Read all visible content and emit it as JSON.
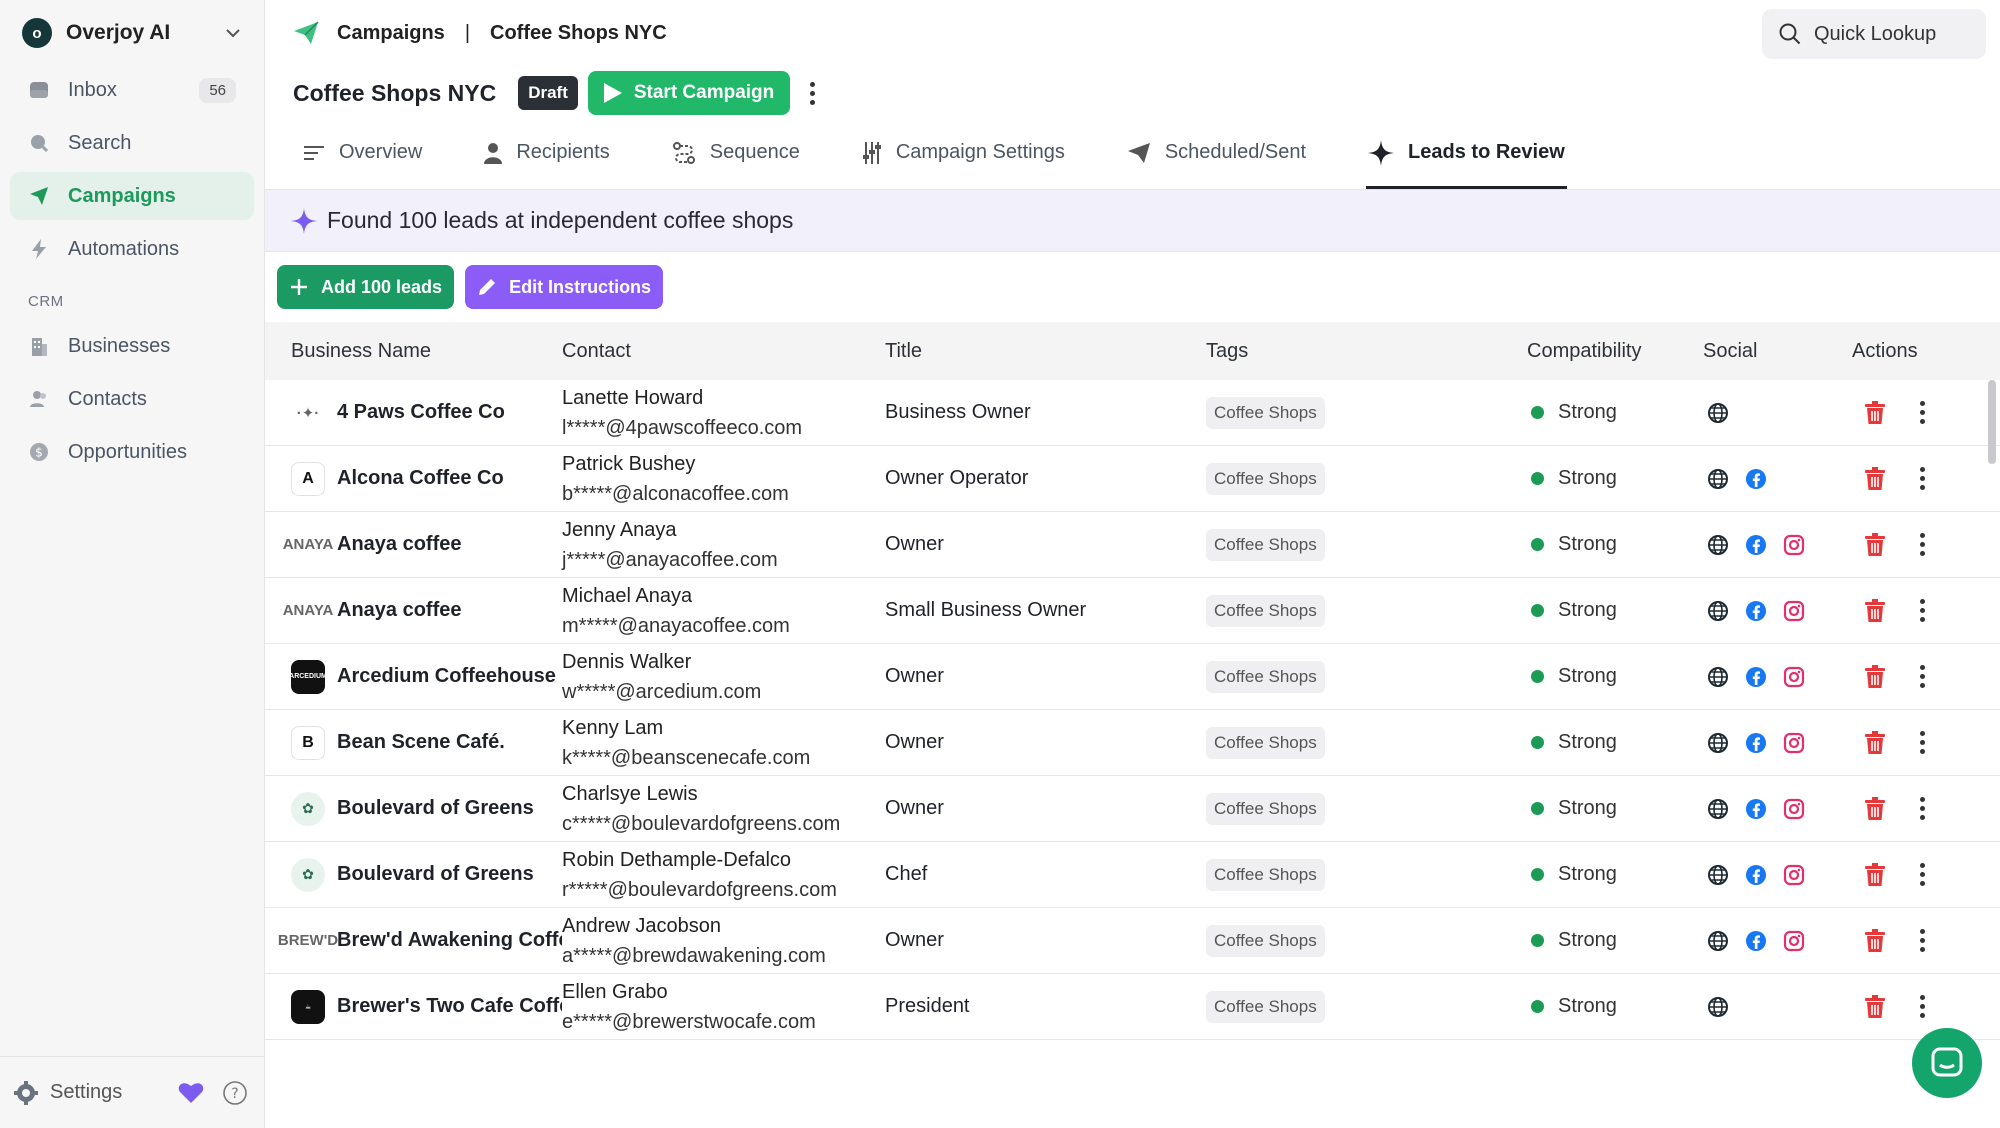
{
  "workspace": {
    "name": "Overjoy AI",
    "logo_glyph": "o"
  },
  "sidebar": {
    "items": [
      {
        "label": "Inbox",
        "badge": "56",
        "icon": "inbox-icon"
      },
      {
        "label": "Search",
        "icon": "search-icon"
      },
      {
        "label": "Campaigns",
        "icon": "paper-plane-icon",
        "active": true
      },
      {
        "label": "Automations",
        "icon": "bolt-icon"
      }
    ],
    "crm_label": "CRM",
    "crm_items": [
      {
        "label": "Businesses",
        "icon": "building-icon"
      },
      {
        "label": "Contacts",
        "icon": "people-icon"
      },
      {
        "label": "Opportunities",
        "icon": "dollar-icon"
      }
    ],
    "settings_label": "Settings"
  },
  "breadcrumb": {
    "root": "Campaigns",
    "separator": "|",
    "current": "Coffee Shops NYC"
  },
  "quick_lookup": {
    "label": "Quick Lookup"
  },
  "campaign": {
    "title": "Coffee Shops NYC",
    "status": "Draft",
    "start_label": "Start Campaign"
  },
  "tabs": [
    {
      "label": "Overview"
    },
    {
      "label": "Recipients"
    },
    {
      "label": "Sequence"
    },
    {
      "label": "Campaign Settings"
    },
    {
      "label": "Scheduled/Sent"
    },
    {
      "label": "Leads to Review",
      "active": true
    }
  ],
  "banner": {
    "text": "Found 100 leads at independent coffee shops"
  },
  "actions": {
    "add_label": "Add 100 leads",
    "edit_label": "Edit Instructions"
  },
  "table": {
    "headers": {
      "business": "Business Name",
      "contact": "Contact",
      "title": "Title",
      "tags": "Tags",
      "compat": "Compatibility",
      "social": "Social",
      "actions": "Actions"
    },
    "rows": [
      {
        "business": "4 Paws Coffee Co",
        "logo": "·✦·",
        "logo_style": "plain",
        "name": "Lanette Howard",
        "email": "l*****@4pawscoffeeco.com",
        "title": "Business Owner",
        "tag": "Coffee Shops",
        "compat": "Strong",
        "social": [
          "web"
        ]
      },
      {
        "business": "Alcona Coffee Co",
        "logo": "A",
        "logo_style": "letter",
        "name": "Patrick Bushey",
        "email": "b*****@alconacoffee.com",
        "title": "Owner Operator",
        "tag": "Coffee Shops",
        "compat": "Strong",
        "social": [
          "web",
          "facebook"
        ]
      },
      {
        "business": "Anaya coffee",
        "logo": "ANAYA",
        "logo_style": "plain",
        "name": "Jenny Anaya",
        "email": "j*****@anayacoffee.com",
        "title": "Owner",
        "tag": "Coffee Shops",
        "compat": "Strong",
        "social": [
          "web",
          "facebook",
          "instagram"
        ]
      },
      {
        "business": "Anaya coffee",
        "logo": "ANAYA",
        "logo_style": "plain",
        "name": "Michael Anaya",
        "email": "m*****@anayacoffee.com",
        "title": "Small Business Owner",
        "tag": "Coffee Shops",
        "compat": "Strong",
        "social": [
          "web",
          "facebook",
          "instagram"
        ]
      },
      {
        "business": "Arcedium Coffeehouse",
        "logo": "ARCEDIUM",
        "logo_style": "dark",
        "name": "Dennis Walker",
        "email": "w*****@arcedium.com",
        "title": "Owner",
        "tag": "Coffee Shops",
        "compat": "Strong",
        "social": [
          "web",
          "facebook",
          "instagram"
        ]
      },
      {
        "business": "Bean Scene Café.",
        "logo": "B",
        "logo_style": "letter",
        "name": "Kenny Lam",
        "email": "k*****@beanscenecafe.com",
        "title": "Owner",
        "tag": "Coffee Shops",
        "compat": "Strong",
        "social": [
          "web",
          "facebook",
          "instagram"
        ]
      },
      {
        "business": "Boulevard of Greens",
        "logo": "✿",
        "logo_style": "green",
        "name": "Charlsye Lewis",
        "email": "c*****@boulevardofgreens.com",
        "title": "Owner",
        "tag": "Coffee Shops",
        "compat": "Strong",
        "social": [
          "web",
          "facebook",
          "instagram"
        ]
      },
      {
        "business": "Boulevard of Greens",
        "logo": "✿",
        "logo_style": "green",
        "name": "Robin Dethample-Defalco",
        "email": "r*****@boulevardofgreens.com",
        "title": "Chef",
        "tag": "Coffee Shops",
        "compat": "Strong",
        "social": [
          "web",
          "facebook",
          "instagram"
        ]
      },
      {
        "business": "Brew'd Awakening Coffe..",
        "logo": "BREW'D",
        "logo_style": "plain",
        "name": "Andrew Jacobson",
        "email": "a*****@brewdawakening.com",
        "title": "Owner",
        "tag": "Coffee Shops",
        "compat": "Strong",
        "social": [
          "web",
          "facebook",
          "instagram"
        ]
      },
      {
        "business": "Brewer's Two Cafe Coffe..",
        "logo": "☕",
        "logo_style": "dark",
        "name": "Ellen Grabo",
        "email": "e*****@brewerstwocafe.com",
        "title": "President",
        "tag": "Coffee Shops",
        "compat": "Strong",
        "social": [
          "web"
        ]
      }
    ]
  },
  "colors": {
    "accent_green": "#21b86a",
    "accent_purple": "#8b5cf6",
    "danger_red": "#e5383b",
    "facebook_blue": "#1877f2",
    "instagram_pink": "#e1306c"
  }
}
